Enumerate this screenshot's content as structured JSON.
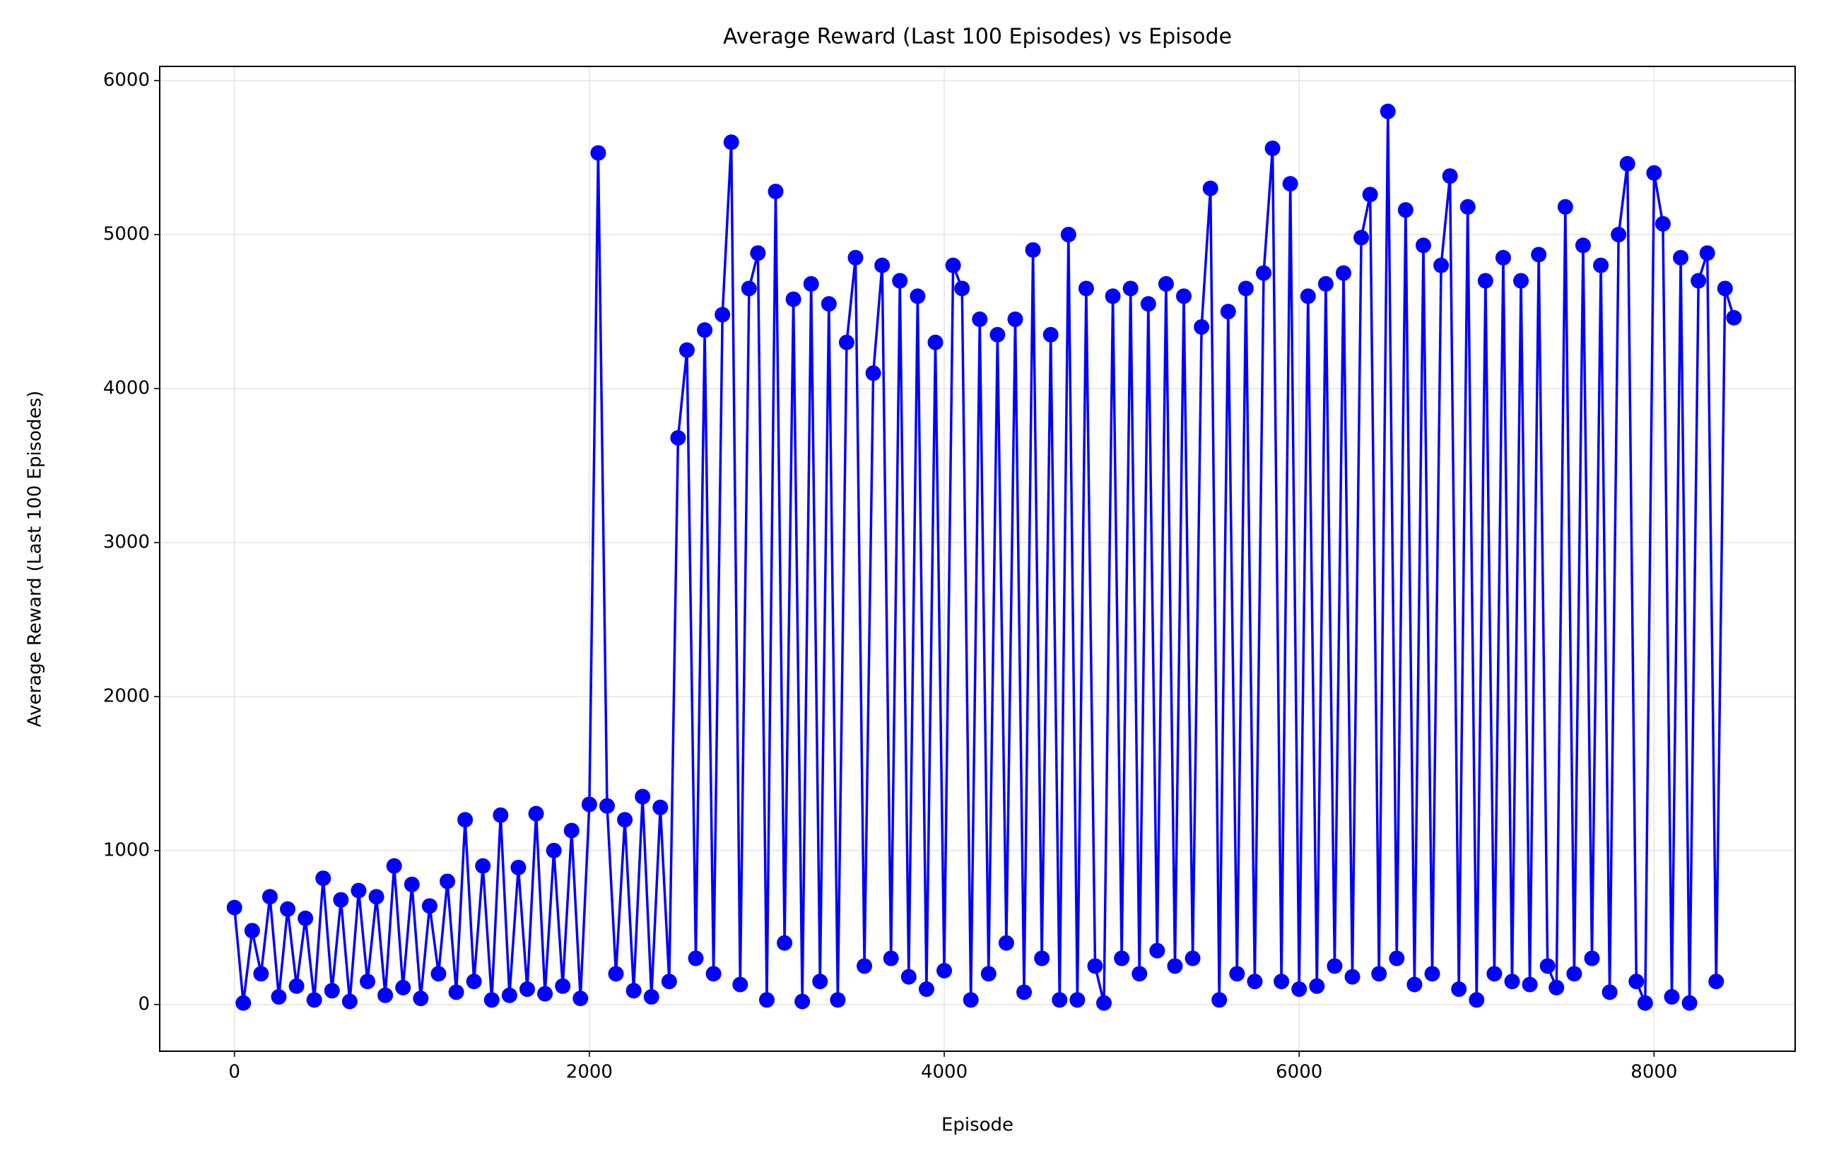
{
  "chart_data": {
    "type": "line",
    "title": "Average Reward (Last 100 Episodes) vs Episode",
    "x_label": "Episode",
    "y_label": "Average Reward (Last 100 Episodes)",
    "color": "#0000ff",
    "grid": true,
    "xlim": [
      -421,
      8795
    ],
    "ylim": [
      -303,
      6092
    ],
    "xticks": [
      0,
      2000,
      4000,
      6000,
      8000
    ],
    "yticks": [
      0,
      1000,
      2000,
      3000,
      4000,
      5000,
      6000
    ],
    "x": [
      0,
      50,
      100,
      150,
      200,
      250,
      300,
      350,
      400,
      450,
      500,
      550,
      600,
      650,
      700,
      750,
      800,
      850,
      900,
      950,
      1000,
      1050,
      1100,
      1150,
      1200,
      1250,
      1300,
      1350,
      1400,
      1450,
      1500,
      1550,
      1600,
      1650,
      1700,
      1750,
      1800,
      1850,
      1900,
      1950,
      2000,
      2050,
      2100,
      2150,
      2200,
      2250,
      2300,
      2350,
      2400,
      2450,
      2500,
      2550,
      2600,
      2650,
      2700,
      2750,
      2800,
      2850,
      2900,
      2950,
      3000,
      3050,
      3100,
      3150,
      3200,
      3250,
      3300,
      3350,
      3400,
      3450,
      3500,
      3550,
      3600,
      3650,
      3700,
      3750,
      3800,
      3850,
      3900,
      3950,
      4000,
      4050,
      4100,
      4150,
      4200,
      4250,
      4300,
      4350,
      4400,
      4450,
      4500,
      4550,
      4600,
      4650,
      4700,
      4750,
      4800,
      4850,
      4900,
      4950,
      5000,
      5050,
      5100,
      5150,
      5200,
      5250,
      5300,
      5350,
      5400,
      5450,
      5500,
      5550,
      5600,
      5650,
      5700,
      5750,
      5800,
      5850,
      5900,
      5950,
      6000,
      6050,
      6100,
      6150,
      6200,
      6250,
      6300,
      6350,
      6400,
      6450,
      6500,
      6550,
      6600,
      6650,
      6700,
      6750,
      6800,
      6850,
      6900,
      6950,
      7000,
      7050,
      7100,
      7150,
      7200,
      7250,
      7300,
      7350,
      7400,
      7450,
      7500,
      7550,
      7600,
      7650,
      7700,
      7750,
      7800,
      7850,
      7900,
      7950,
      8000,
      8050,
      8100,
      8150,
      8200,
      8250,
      8300,
      8350,
      8400,
      8450
    ],
    "values": [
      630,
      10,
      480,
      200,
      700,
      50,
      620,
      120,
      560,
      30,
      820,
      90,
      680,
      20,
      740,
      150,
      700,
      60,
      900,
      110,
      780,
      40,
      640,
      200,
      800,
      80,
      1200,
      150,
      900,
      30,
      1230,
      60,
      890,
      100,
      1240,
      70,
      1000,
      120,
      1130,
      40,
      1300,
      5530,
      1290,
      200,
      1200,
      90,
      1350,
      50,
      1280,
      150,
      3680,
      4250,
      300,
      4380,
      200,
      4480,
      5600,
      130,
      4650,
      4880,
      30,
      5280,
      400,
      4580,
      20,
      4680,
      150,
      4550,
      30,
      4300,
      4850,
      250,
      4100,
      4800,
      300,
      4700,
      180,
      4600,
      100,
      4300,
      220,
      4800,
      4650,
      30,
      4450,
      200,
      4350,
      400,
      4450,
      80,
      4900,
      300,
      4350,
      30,
      5000,
      30,
      4650,
      250,
      10,
      4600,
      300,
      4650,
      200,
      4550,
      350,
      4680,
      250,
      4600,
      300,
      4400,
      5300,
      30,
      4500,
      200,
      4650,
      150,
      4750,
      5560,
      150,
      5330,
      100,
      4600,
      120,
      4680,
      250,
      4750,
      180,
      4980,
      5260,
      200,
      5800,
      300,
      5160,
      130,
      4930,
      200,
      4800,
      5380,
      100,
      5180,
      30,
      4700,
      200,
      4850,
      150,
      4700,
      130,
      4870,
      250,
      110,
      5180,
      200,
      4930,
      300,
      4800,
      80,
      5000,
      5460,
      150,
      10,
      5400,
      5070,
      50,
      4850,
      10,
      4700,
      4880,
      150,
      4650,
      4460
    ]
  }
}
